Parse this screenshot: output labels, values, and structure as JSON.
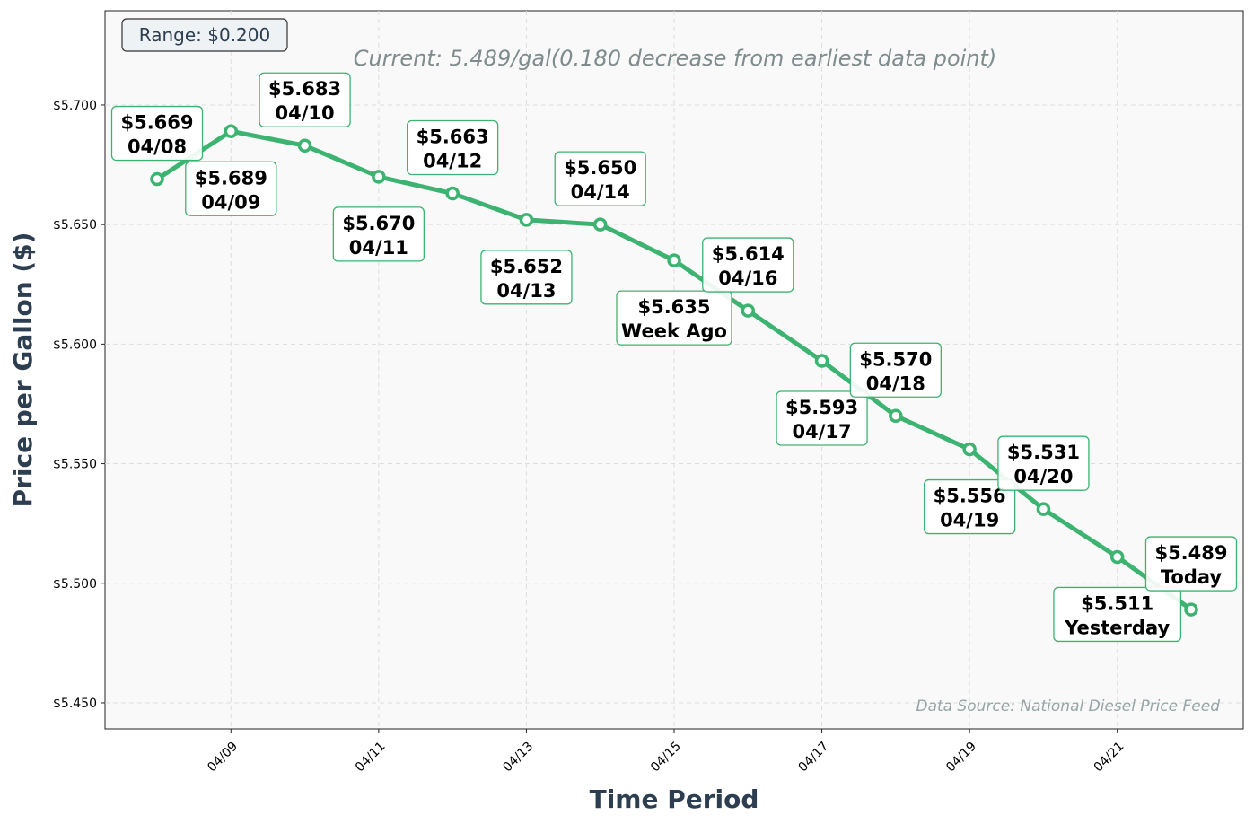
{
  "chart_data": {
    "type": "line",
    "title": "",
    "xlabel": "Time Period",
    "ylabel": "Price per Gallon ($)",
    "x": [
      "04/08",
      "04/09",
      "04/10",
      "04/11",
      "04/12",
      "04/13",
      "04/14",
      "04/15",
      "04/16",
      "04/17",
      "04/18",
      "04/19",
      "04/20",
      "04/21",
      "04/22"
    ],
    "values": [
      5.669,
      5.689,
      5.683,
      5.67,
      5.663,
      5.652,
      5.65,
      5.635,
      5.614,
      5.593,
      5.57,
      5.556,
      5.531,
      5.511,
      5.489
    ],
    "point_labels": [
      [
        "$5.669",
        "04/08"
      ],
      [
        "$5.689",
        "04/09"
      ],
      [
        "$5.683",
        "04/10"
      ],
      [
        "$5.670",
        "04/11"
      ],
      [
        "$5.663",
        "04/12"
      ],
      [
        "$5.652",
        "04/13"
      ],
      [
        "$5.650",
        "04/14"
      ],
      [
        "$5.635",
        "Week Ago"
      ],
      [
        "$5.614",
        "04/16"
      ],
      [
        "$5.593",
        "04/17"
      ],
      [
        "$5.570",
        "04/18"
      ],
      [
        "$5.556",
        "04/19"
      ],
      [
        "$5.531",
        "04/20"
      ],
      [
        "$5.511",
        "Yesterday"
      ],
      [
        "$5.489",
        "Today"
      ]
    ],
    "x_tick_labels": [
      "04/09",
      "04/11",
      "04/13",
      "04/15",
      "04/17",
      "04/19",
      "04/21"
    ],
    "y_tick_labels": [
      "$5.450",
      "$5.500",
      "$5.550",
      "$5.600",
      "$5.650",
      "$5.700"
    ],
    "y_ticks": [
      5.45,
      5.5,
      5.55,
      5.6,
      5.65,
      5.7
    ],
    "ylim": [
      5.4391,
      5.7394
    ],
    "grid": true,
    "line_color": "#3cb371",
    "range_box": "Range: $0.200",
    "subtitle": "Current: 5.489/gal(0.180 decrease from earliest data point)",
    "source": "Data Source: National Diesel Price Feed"
  }
}
